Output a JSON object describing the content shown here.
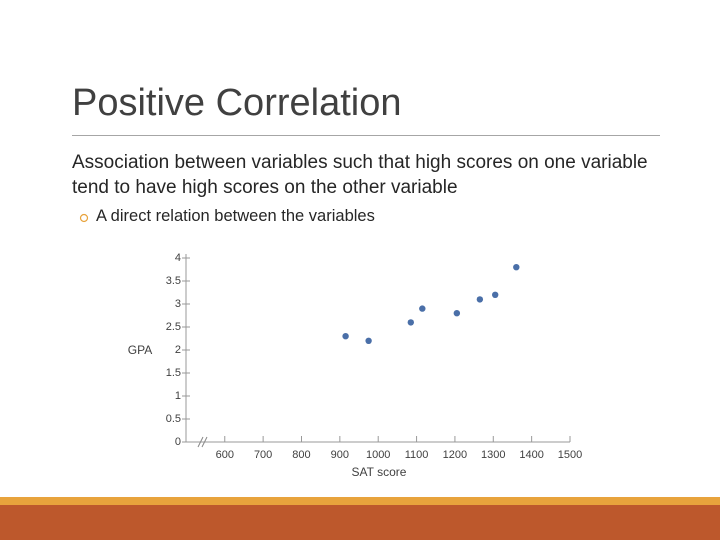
{
  "slide": {
    "title": "Positive Correlation",
    "body": "Association between variables such that high scores on one variable tend to have high scores on the other variable",
    "bullet": "A direct relation between the variables"
  },
  "chart_data": {
    "type": "scatter",
    "xlabel": "SAT score",
    "ylabel": "GPA",
    "x": [
      915,
      975,
      1085,
      1115,
      1205,
      1265,
      1305,
      1360
    ],
    "values": [
      2.3,
      2.2,
      2.6,
      2.9,
      2.8,
      3.1,
      3.2,
      3.8
    ],
    "color": "#4a6fa8",
    "xlim": [
      525,
      1500
    ],
    "xticks": [
      600,
      700,
      800,
      900,
      1000,
      1100,
      1200,
      1300,
      1400,
      1500
    ],
    "ylim": [
      0,
      4
    ],
    "yticks": [
      0,
      0.5,
      1,
      1.5,
      2,
      2.5,
      3,
      3.5,
      4
    ]
  }
}
